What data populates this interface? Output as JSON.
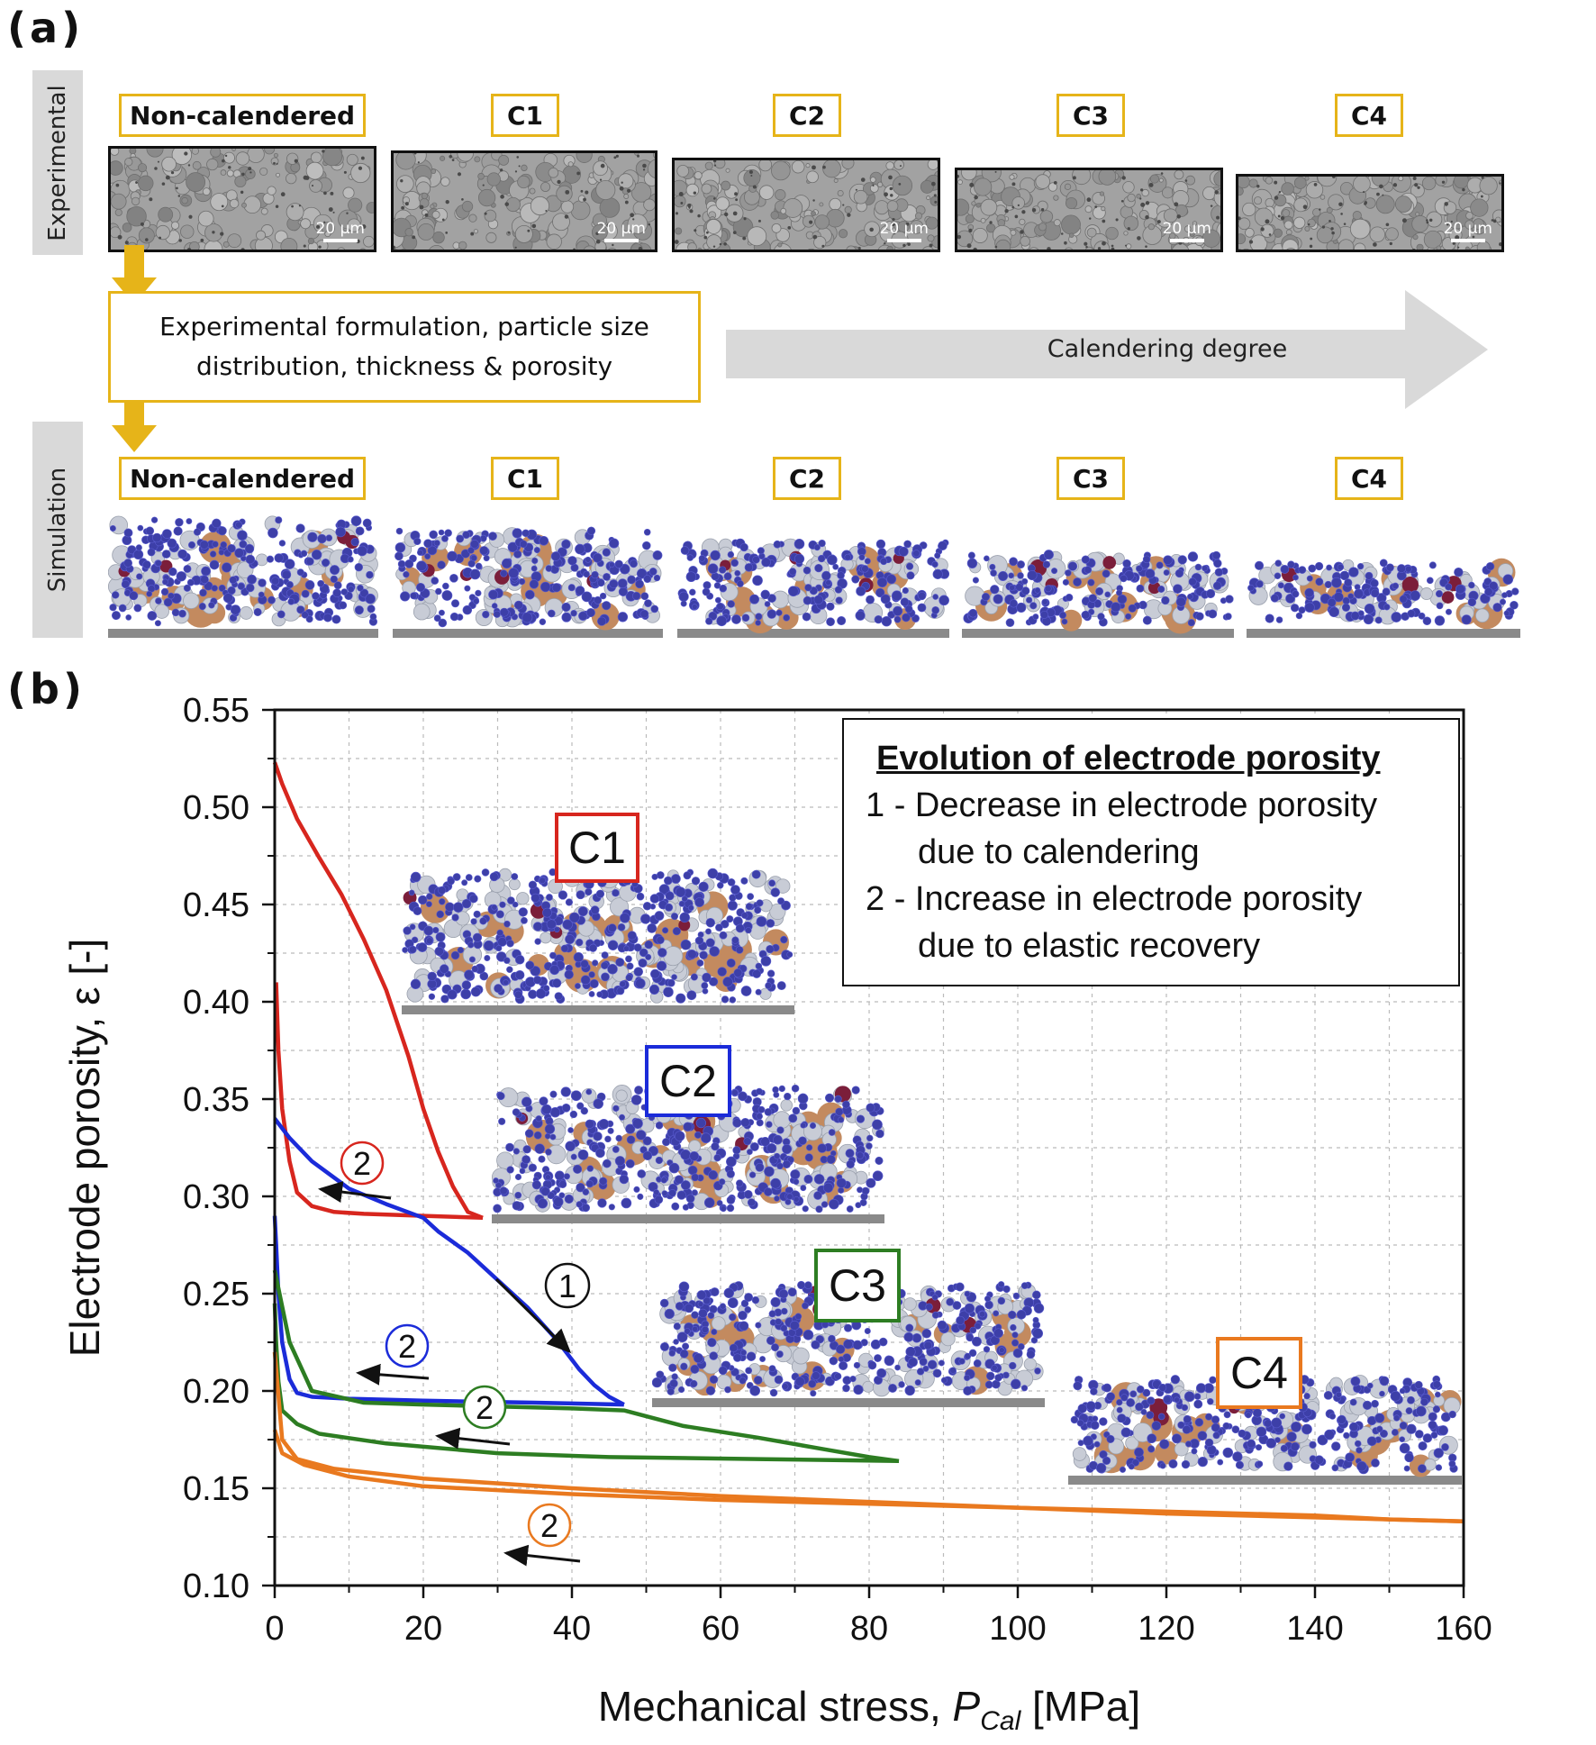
{
  "panel_a": {
    "label": "(a)",
    "experimental_label": "Experimental",
    "simulation_label": "Simulation",
    "tags": [
      "Non-calendered",
      "C1",
      "C2",
      "C3",
      "C4"
    ],
    "scale_bar": "20 µm",
    "formulation_text": [
      "Experimental formulation, particle size",
      "distribution, thickness & porosity"
    ],
    "arrow_text": "Calendering degree",
    "colors": {
      "tag_border": "#e6b419",
      "arrow": "#d9d9d9",
      "active": "#c38a5f",
      "carbon": "#3d3fa8",
      "binder": "#7b1e3a",
      "solid": "#c8ccd6"
    }
  },
  "panel_b": {
    "label": "(b)",
    "insets": [
      "C1",
      "C2",
      "C3",
      "C4"
    ],
    "legend": {
      "title": "Evolution of electrode porosity",
      "lines": [
        "1 - Decrease in electrode porosity",
        "due to calendering",
        "2 - Increase in electrode porosity",
        "due to elastic recovery"
      ]
    },
    "markers": [
      "1",
      "2"
    ]
  },
  "chart_data": {
    "type": "line",
    "xlabel": "Mechanical stress, ",
    "xlabel_italic": "P",
    "xlabel_sub": "Cal",
    "xlabel_unit": " [MPa]",
    "ylabel": "Electrode porosity, ε [-]",
    "xlim": [
      0,
      160
    ],
    "ylim": [
      0.1,
      0.55
    ],
    "xticks": [
      0,
      20,
      40,
      60,
      80,
      100,
      120,
      140,
      160
    ],
    "yticks": [
      0.1,
      0.15,
      0.2,
      0.25,
      0.3,
      0.35,
      0.4,
      0.45,
      0.5,
      0.55
    ],
    "grid": true,
    "series": [
      {
        "color": "#d7261e",
        "loading": [
          [
            0,
            0.523
          ],
          [
            1,
            0.512
          ],
          [
            3,
            0.494
          ],
          [
            6,
            0.474
          ],
          [
            9,
            0.455
          ],
          [
            12,
            0.432
          ],
          [
            15,
            0.406
          ],
          [
            18,
            0.372
          ],
          [
            20,
            0.345
          ],
          [
            22,
            0.323
          ],
          [
            24,
            0.305
          ],
          [
            26,
            0.292
          ],
          [
            28,
            0.289
          ]
        ],
        "unloading": [
          [
            28,
            0.289
          ],
          [
            20,
            0.29
          ],
          [
            12,
            0.291
          ],
          [
            8,
            0.292
          ],
          [
            5,
            0.295
          ],
          [
            3,
            0.302
          ],
          [
            2,
            0.318
          ],
          [
            1,
            0.345
          ],
          [
            0.5,
            0.375
          ],
          [
            0.2,
            0.41
          ]
        ]
      },
      {
        "color": "#1b2bd9",
        "loading": [
          [
            0,
            0.34
          ],
          [
            2,
            0.33
          ],
          [
            5,
            0.318
          ],
          [
            10,
            0.304
          ],
          [
            15,
            0.296
          ],
          [
            20,
            0.289
          ],
          [
            22,
            0.282
          ],
          [
            26,
            0.271
          ],
          [
            30,
            0.257
          ],
          [
            34,
            0.243
          ],
          [
            38,
            0.226
          ],
          [
            41,
            0.211
          ],
          [
            43,
            0.203
          ],
          [
            45,
            0.197
          ],
          [
            47,
            0.193
          ]
        ],
        "unloading": [
          [
            47,
            0.193
          ],
          [
            35,
            0.194
          ],
          [
            20,
            0.195
          ],
          [
            10,
            0.196
          ],
          [
            5,
            0.197
          ],
          [
            3,
            0.199
          ],
          [
            2,
            0.206
          ],
          [
            1,
            0.225
          ],
          [
            0.5,
            0.25
          ],
          [
            0.2,
            0.275
          ],
          [
            0,
            0.29
          ]
        ]
      },
      {
        "color": "#2d7d22",
        "loading": [
          [
            0,
            0.262
          ],
          [
            2,
            0.225
          ],
          [
            5,
            0.2
          ],
          [
            12,
            0.194
          ],
          [
            20,
            0.193
          ],
          [
            30,
            0.192
          ],
          [
            40,
            0.191
          ],
          [
            47,
            0.19
          ],
          [
            55,
            0.182
          ],
          [
            65,
            0.176
          ],
          [
            74,
            0.17
          ],
          [
            80,
            0.166
          ],
          [
            84,
            0.164
          ]
        ],
        "unloading": [
          [
            84,
            0.164
          ],
          [
            65,
            0.165
          ],
          [
            45,
            0.166
          ],
          [
            30,
            0.168
          ],
          [
            15,
            0.173
          ],
          [
            6,
            0.178
          ],
          [
            3,
            0.183
          ],
          [
            1,
            0.19
          ],
          [
            0.5,
            0.205
          ],
          [
            0.2,
            0.225
          ],
          [
            0,
            0.245
          ]
        ]
      },
      {
        "color": "#e9791f",
        "loading": [
          [
            0,
            0.22
          ],
          [
            1,
            0.175
          ],
          [
            3,
            0.165
          ],
          [
            8,
            0.16
          ],
          [
            20,
            0.155
          ],
          [
            40,
            0.15
          ],
          [
            60,
            0.146
          ],
          [
            80,
            0.143
          ],
          [
            100,
            0.14
          ],
          [
            120,
            0.137
          ],
          [
            140,
            0.135
          ],
          [
            160,
            0.133
          ]
        ],
        "unloading": [
          [
            160,
            0.133
          ],
          [
            150,
            0.134
          ],
          [
            140,
            0.136
          ],
          [
            120,
            0.138
          ],
          [
            100,
            0.14
          ],
          [
            80,
            0.142
          ],
          [
            60,
            0.144
          ],
          [
            40,
            0.147
          ],
          [
            20,
            0.151
          ],
          [
            10,
            0.156
          ],
          [
            4,
            0.162
          ],
          [
            1,
            0.168
          ],
          [
            0,
            0.18
          ]
        ]
      }
    ]
  }
}
